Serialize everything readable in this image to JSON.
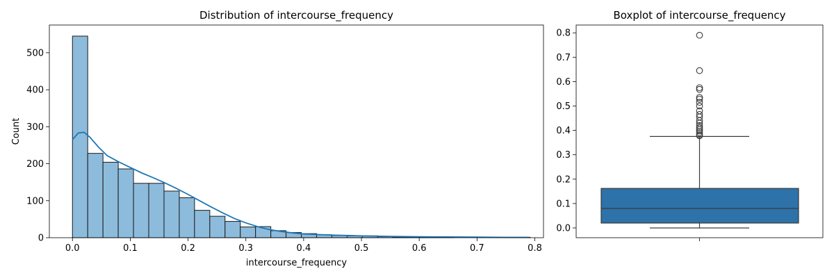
{
  "colors": {
    "bar_fill": "#8dbbdc",
    "bar_edge": "#1a1a1a",
    "kde_line": "#1f77b4",
    "box_fill": "#2d72a8",
    "box_edge": "#3a3a3a"
  },
  "chart_data": [
    {
      "type": "bar",
      "subtype": "histogram",
      "title": "Distribution of intercourse_frequency",
      "xlabel": "intercourse_frequency",
      "ylabel": "Count",
      "xlim": [
        -0.04,
        0.815
      ],
      "ylim": [
        0,
        575
      ],
      "x_ticks": [
        0.0,
        0.1,
        0.2,
        0.3,
        0.4,
        0.5,
        0.6,
        0.7,
        0.8
      ],
      "x_tick_labels": [
        "0.0",
        "0.1",
        "0.2",
        "0.3",
        "0.4",
        "0.5",
        "0.6",
        "0.7",
        "0.8"
      ],
      "y_ticks": [
        0,
        100,
        200,
        300,
        400,
        500
      ],
      "y_tick_labels": [
        "0",
        "100",
        "200",
        "300",
        "400",
        "500"
      ],
      "bin_edges": [
        0.0,
        0.0264,
        0.0528,
        0.0792,
        0.1056,
        0.132,
        0.1584,
        0.1848,
        0.2112,
        0.2376,
        0.264,
        0.2904,
        0.3168,
        0.3432,
        0.3696,
        0.396,
        0.4224,
        0.4488,
        0.4752,
        0.5016,
        0.528,
        0.5544,
        0.5808,
        0.6072,
        0.6336,
        0.66,
        0.6864,
        0.7128,
        0.7392,
        0.7656,
        0.792
      ],
      "counts": [
        545,
        228,
        204,
        186,
        147,
        147,
        126,
        108,
        74,
        58,
        44,
        29,
        30,
        19,
        14,
        11,
        8,
        6,
        5,
        5,
        3,
        2,
        1,
        1,
        1,
        0,
        0,
        0,
        0,
        1
      ],
      "kde": {
        "x": [
          0.0,
          0.01,
          0.02,
          0.03,
          0.045,
          0.06,
          0.08,
          0.1,
          0.12,
          0.14,
          0.16,
          0.18,
          0.2,
          0.22,
          0.24,
          0.26,
          0.28,
          0.3,
          0.32,
          0.34,
          0.36,
          0.38,
          0.4,
          0.45,
          0.5,
          0.55,
          0.6,
          0.65,
          0.7,
          0.75,
          0.79
        ],
        "y": [
          265,
          283,
          285,
          272,
          245,
          222,
          205,
          190,
          175,
          162,
          148,
          133,
          117,
          100,
          83,
          67,
          52,
          40,
          30,
          22,
          17,
          13,
          10,
          7,
          5,
          3.5,
          2.5,
          2,
          1.5,
          1,
          1
        ]
      }
    },
    {
      "type": "box",
      "title": "Boxplot of intercourse_frequency",
      "ylim": [
        -0.04,
        0.832
      ],
      "y_ticks": [
        0.0,
        0.1,
        0.2,
        0.3,
        0.4,
        0.5,
        0.6,
        0.7,
        0.8
      ],
      "y_tick_labels": [
        "0.0",
        "0.1",
        "0.2",
        "0.3",
        "0.4",
        "0.5",
        "0.6",
        "0.7",
        "0.8"
      ],
      "min": 0.0,
      "q1": 0.02,
      "median": 0.08,
      "q3": 0.162,
      "whisker_high": 0.375,
      "outliers": [
        0.378,
        0.382,
        0.39,
        0.397,
        0.405,
        0.412,
        0.42,
        0.43,
        0.44,
        0.455,
        0.465,
        0.48,
        0.5,
        0.515,
        0.528,
        0.535,
        0.568,
        0.575,
        0.645,
        0.79
      ]
    }
  ]
}
